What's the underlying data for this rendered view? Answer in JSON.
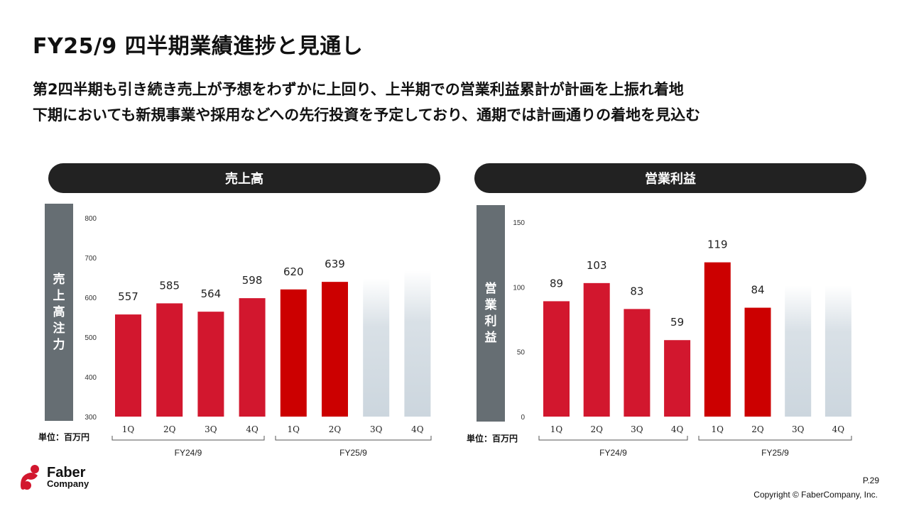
{
  "title": "FY25/9 四半期業績進捗と見通し",
  "subtitle_lines": [
    "第2四半期も引き続き売上が予想をわずかに上回り、上半期での営業利益累計が計画を上振れ着地",
    "下期においても新規事業や採用などへの先行投資を予定しており、通期では計画通りの着地を見込む"
  ],
  "unit_label": "単位：百万円",
  "footer": {
    "brand_line1": "Faber",
    "brand_line2": "Company",
    "page": "P.29",
    "copyright": "Copyright © FaberCompany, Inc."
  },
  "colors": {
    "actual": "#d2172e",
    "actual_fy25": "#cc0000",
    "forecast": "#ccd6de",
    "header_pill": "#222222",
    "side_label": "#666e73"
  },
  "chart_data": [
    {
      "type": "bar",
      "title": "売上高",
      "side_label": "売上高注力",
      "categories": [
        "1Q",
        "2Q",
        "3Q",
        "4Q",
        "1Q",
        "2Q",
        "3Q",
        "4Q"
      ],
      "groups": [
        {
          "name": "FY24/9",
          "categories": [
            "1Q",
            "2Q",
            "3Q",
            "4Q"
          ]
        },
        {
          "name": "FY25/9",
          "categories": [
            "1Q",
            "2Q",
            "3Q",
            "4Q"
          ]
        }
      ],
      "values": [
        557,
        585,
        564,
        598,
        620,
        639,
        648,
        668
      ],
      "labels": [
        "557",
        "585",
        "564",
        "598",
        "620",
        "639",
        "",
        ""
      ],
      "status": [
        "actual",
        "actual",
        "actual",
        "actual",
        "actual_fy25",
        "actual_fy25",
        "forecast",
        "forecast"
      ],
      "ylim": [
        300,
        800
      ],
      "yticks": [
        300,
        400,
        500,
        600,
        700,
        800
      ],
      "grid": false
    },
    {
      "type": "bar",
      "title": "営業利益",
      "side_label": "営業利益",
      "categories": [
        "1Q",
        "2Q",
        "3Q",
        "4Q",
        "1Q",
        "2Q",
        "3Q",
        "4Q"
      ],
      "groups": [
        {
          "name": "FY24/9",
          "categories": [
            "1Q",
            "2Q",
            "3Q",
            "4Q"
          ]
        },
        {
          "name": "FY25/9",
          "categories": [
            "1Q",
            "2Q",
            "3Q",
            "4Q"
          ]
        }
      ],
      "values": [
        89,
        103,
        83,
        59,
        119,
        84,
        101,
        101
      ],
      "labels": [
        "89",
        "103",
        "83",
        "59",
        "119",
        "84",
        "",
        ""
      ],
      "status": [
        "actual",
        "actual",
        "actual",
        "actual",
        "actual_fy25",
        "actual_fy25",
        "forecast",
        "forecast"
      ],
      "ylim": [
        0,
        150
      ],
      "yticks": [
        0,
        50,
        100,
        150
      ],
      "grid": false
    }
  ]
}
